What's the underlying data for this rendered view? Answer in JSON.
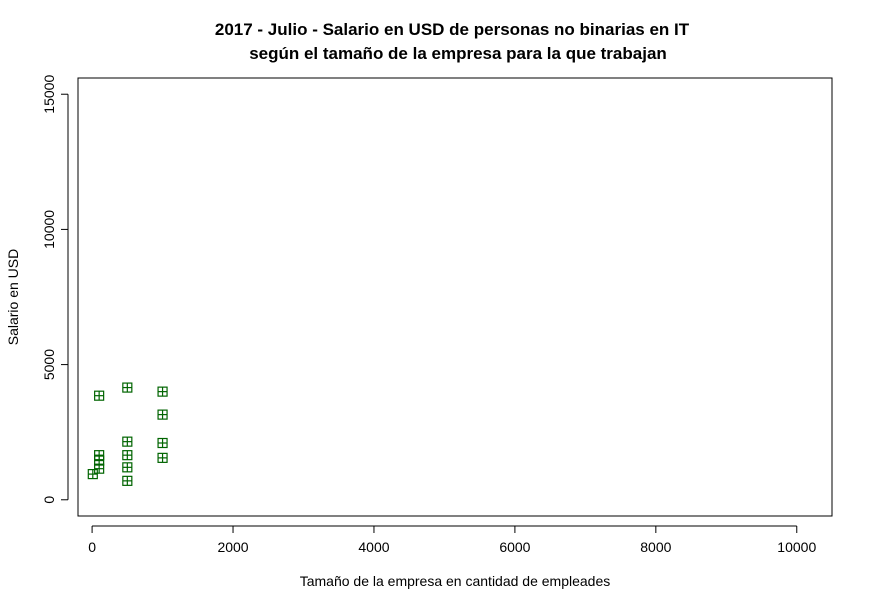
{
  "chart_data": {
    "type": "scatter",
    "title_line1": "2017 - Julio - Salario en USD de personas no binarias en IT",
    "title_line2": "según el tamaño de la empresa para la que trabajan",
    "xlabel": "Tamaño de la empresa en cantidad de empleades",
    "ylabel": "Salario en USD",
    "xlim": [
      -200,
      10500
    ],
    "ylim": [
      -600,
      15600
    ],
    "xticks": [
      0,
      2000,
      4000,
      6000,
      8000,
      10000
    ],
    "yticks": [
      0,
      5000,
      10000,
      15000
    ],
    "xtick_labels": [
      "0",
      "2000",
      "4000",
      "6000",
      "8000",
      "10000"
    ],
    "ytick_labels": [
      "0",
      "5000",
      "10000",
      "15000"
    ],
    "grid": false,
    "marker": "square-plus",
    "marker_color": "#006400",
    "points": [
      {
        "x": 10,
        "y": 950
      },
      {
        "x": 100,
        "y": 3850
      },
      {
        "x": 100,
        "y": 1650
      },
      {
        "x": 100,
        "y": 1450
      },
      {
        "x": 100,
        "y": 1150
      },
      {
        "x": 500,
        "y": 4150
      },
      {
        "x": 500,
        "y": 2150
      },
      {
        "x": 500,
        "y": 1650
      },
      {
        "x": 500,
        "y": 1200
      },
      {
        "x": 500,
        "y": 700
      },
      {
        "x": 1000,
        "y": 4000
      },
      {
        "x": 1000,
        "y": 3150
      },
      {
        "x": 1000,
        "y": 2100
      },
      {
        "x": 1000,
        "y": 1550
      }
    ]
  }
}
